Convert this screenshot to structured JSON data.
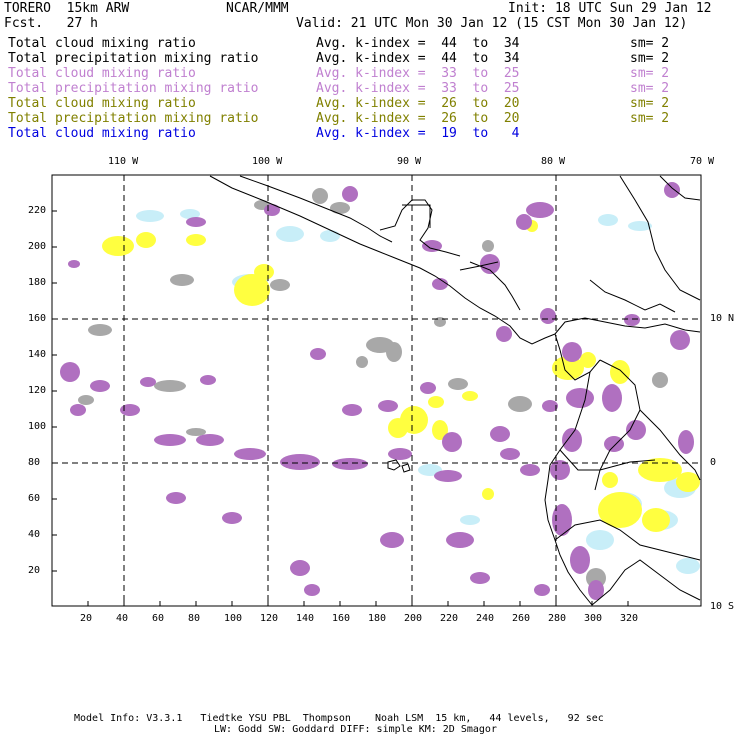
{
  "header": {
    "model": "TORERO  15km ARW",
    "org": "NCAR/MMM",
    "init": "Init: 18 UTC Sun 29 Jan 12",
    "fcst": "Fcst.   27 h",
    "valid": "Valid: 21 UTC Mon 30 Jan 12 (15 CST Mon 30 Jan 12)"
  },
  "legend": [
    {
      "field": "Total cloud mixing ratio",
      "index": "Avg. k-index =  44  to  34",
      "sm": "sm= 2",
      "color": "#000000"
    },
    {
      "field": "Total precipitation mixing ratio",
      "index": "Avg. k-index =  44  to  34",
      "sm": "sm= 2",
      "color": "#000000"
    },
    {
      "field": "Total cloud mixing ratio",
      "index": "Avg. k-index =  33  to  25",
      "sm": "sm= 2",
      "color": "#c080d0"
    },
    {
      "field": "Total precipitation mixing ratio",
      "index": "Avg. k-index =  33  to  25",
      "sm": "sm= 2",
      "color": "#c080d0"
    },
    {
      "field": "Total cloud mixing ratio",
      "index": "Avg. k-index =  26  to  20",
      "sm": "sm= 2",
      "color": "#808000"
    },
    {
      "field": "Total precipitation mixing ratio",
      "index": "Avg. k-index =  26  to  20",
      "sm": "sm= 2",
      "color": "#808000"
    },
    {
      "field": "Total cloud mixing ratio",
      "index": "Avg. k-index =  19  to   4",
      "sm": "",
      "color": "#0000e0"
    }
  ],
  "axes": {
    "x_ticks": [
      "20",
      "40",
      "60",
      "80",
      "100",
      "120",
      "140",
      "160",
      "180",
      "200",
      "220",
      "240",
      "260",
      "280",
      "300",
      "320"
    ],
    "y_ticks": [
      "20",
      "40",
      "60",
      "80",
      "100",
      "120",
      "140",
      "160",
      "180",
      "200",
      "220"
    ],
    "lon_labels": [
      "110 W",
      "100 W",
      "90 W",
      "80 W",
      "70 W"
    ],
    "lat_labels": [
      "10 N",
      "0",
      "10 S"
    ]
  },
  "colors": {
    "gray": "#a8a8a8",
    "purple": "#b070c0",
    "yellow": "#ffff40",
    "lightblue": "#c8eef8"
  },
  "footer": {
    "line1": "Model Info: V3.3.1   Tiedtke YSU PBL  Thompson    Noah LSM  15 km,   44 levels,   92 sec",
    "line2": "LW: Godd SW: Goddard DIFF: simple KM: 2D Smagor"
  }
}
